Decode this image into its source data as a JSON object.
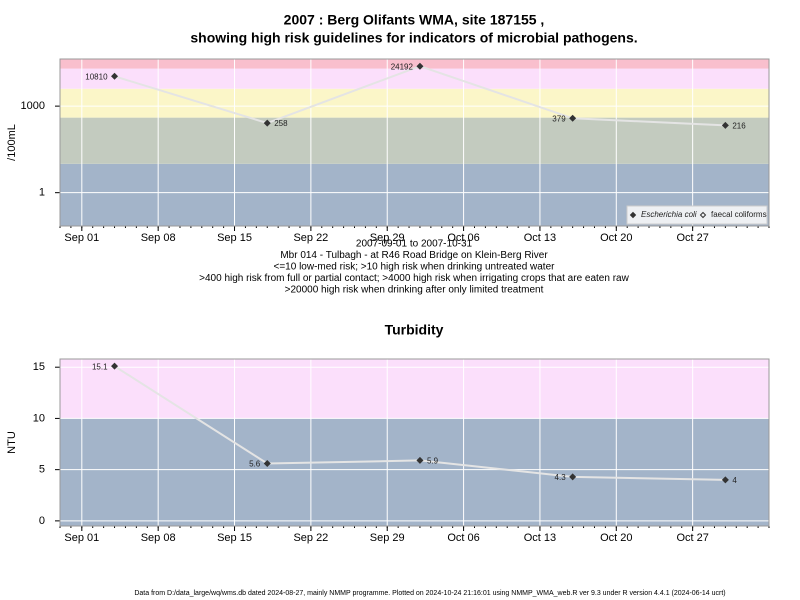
{
  "chart_data": [
    {
      "type": "line",
      "title": [
        "2007 : Berg Olifants WMA, site 187155 ,",
        "showing high risk guidelines for indicators of microbial pathogens."
      ],
      "notes": [
        "2007-09-01 to 2007-10-31",
        "Mbr 014 - Tulbagh - at R46 Road Bridge on Klein-Berg River",
        "<=10 low-med risk; >10 high risk when drinking untreated water",
        ">400 high risk from full or partial contact; >4000 high risk when irrigating crops that are eaten raw",
        ">20000 high risk when drinking after only limited treatment"
      ],
      "y_label": "/100mL",
      "log_scale": true,
      "x": [
        "2007-09-04",
        "2007-09-18",
        "2007-10-02",
        "2007-10-16",
        "2007-10-30"
      ],
      "series": [
        {
          "name": "Escherichia coli",
          "color": "#333333",
          "values": [
            10810,
            258,
            24192,
            379,
            216
          ]
        },
        {
          "name": "faecal coliforms",
          "color": "#333333",
          "values": [
            null,
            null,
            null,
            null,
            null
          ]
        }
      ],
      "thresholds": [
        10,
        400,
        4000,
        20000
      ],
      "band_colors": [
        "#a3b4c9",
        "#c3cbbf",
        "#fbf6c8",
        "#fbdffb",
        "#f9bfcd"
      ],
      "xlim": [
        "2007-08-30",
        "2007-11-03"
      ],
      "xticks": [
        {
          "value": "2007-09-01",
          "label": "Sep 01"
        },
        {
          "value": "2007-09-08",
          "label": "Sep 08"
        },
        {
          "value": "2007-09-15",
          "label": "Sep 15"
        },
        {
          "value": "2007-09-22",
          "label": "Sep 22"
        },
        {
          "value": "2007-09-29",
          "label": "Sep 29"
        },
        {
          "value": "2007-10-06",
          "label": "Oct 06"
        },
        {
          "value": "2007-10-13",
          "label": "Oct 13"
        },
        {
          "value": "2007-10-20",
          "label": "Oct 20"
        },
        {
          "value": "2007-10-27",
          "label": "Oct 27"
        }
      ],
      "ylim": [
        0.07,
        43000
      ],
      "yticks": [
        1,
        1000
      ],
      "grid": true,
      "legend": "bottom-right"
    },
    {
      "type": "line",
      "title": [
        "Turbidity"
      ],
      "y_label": "NTU",
      "log_scale": false,
      "x": [
        "2007-09-04",
        "2007-09-18",
        "2007-10-02",
        "2007-10-16",
        "2007-10-30"
      ],
      "series": [
        {
          "name": "Turbidity",
          "color": "#333333",
          "values": [
            15.1,
            5.6,
            5.9,
            4.3,
            4
          ]
        }
      ],
      "thresholds": [
        10
      ],
      "band_colors": [
        "#a3b4c9",
        "#fbdffb"
      ],
      "xlim": [
        "2007-08-30",
        "2007-11-03"
      ],
      "xticks": [
        {
          "value": "2007-09-01",
          "label": "Sep 01"
        },
        {
          "value": "2007-09-08",
          "label": "Sep 08"
        },
        {
          "value": "2007-09-15",
          "label": "Sep 15"
        },
        {
          "value": "2007-09-22",
          "label": "Sep 22"
        },
        {
          "value": "2007-09-29",
          "label": "Sep 29"
        },
        {
          "value": "2007-10-06",
          "label": "Oct 06"
        },
        {
          "value": "2007-10-13",
          "label": "Oct 13"
        },
        {
          "value": "2007-10-20",
          "label": "Oct 20"
        },
        {
          "value": "2007-10-27",
          "label": "Oct 27"
        }
      ],
      "ylim": [
        -0.5,
        15.8
      ],
      "yticks": [
        0,
        5,
        10,
        15
      ],
      "grid": true
    }
  ],
  "footer": "Data from D:/data_large/wq/wms.db dated 2024-08-27, mainly NMMP programme. Plotted on 2024-10-24 21:16:01 using NMMP_WMA_web.R ver 9.3 under R version 4.4.1 (2024-06-14 ucrt)"
}
